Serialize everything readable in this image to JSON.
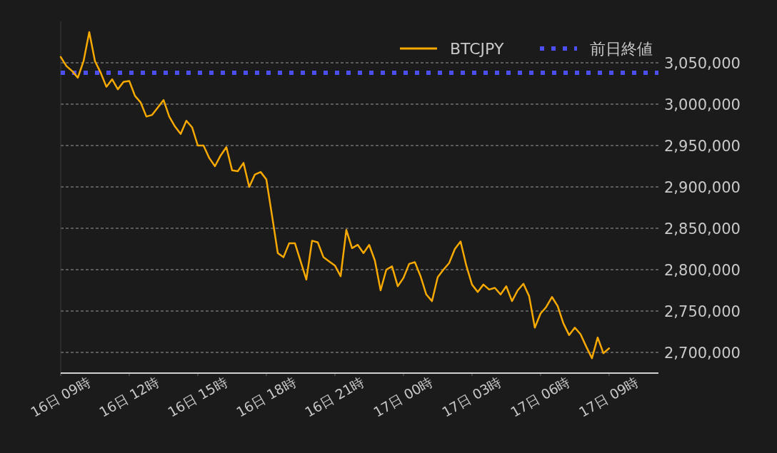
{
  "chart_data": {
    "type": "line",
    "categories": [
      "16日 09時",
      null,
      null,
      null,
      null,
      null,
      null,
      null,
      null,
      null,
      null,
      null,
      "16日 12時",
      null,
      null,
      null,
      null,
      null,
      null,
      null,
      null,
      null,
      null,
      null,
      "16日 15時",
      null,
      null,
      null,
      null,
      null,
      null,
      null,
      null,
      null,
      null,
      null,
      "16日 18時",
      null,
      null,
      null,
      null,
      null,
      null,
      null,
      null,
      null,
      null,
      null,
      "16日 21時",
      null,
      null,
      null,
      null,
      null,
      null,
      null,
      null,
      null,
      null,
      null,
      "17日 00時",
      null,
      null,
      null,
      null,
      null,
      null,
      null,
      null,
      null,
      null,
      null,
      "17日 03時",
      null,
      null,
      null,
      null,
      null,
      null,
      null,
      null,
      null,
      null,
      null,
      "17日 06時",
      null,
      null,
      null,
      null,
      null,
      null,
      null,
      null,
      null,
      null,
      null,
      "17日 09時"
    ],
    "series": [
      {
        "name": "BTCJPY",
        "color": "#f7a900",
        "values": [
          3057000,
          3046000,
          3040000,
          3032000,
          3052000,
          3087000,
          3052000,
          3038000,
          3021000,
          3030000,
          3018000,
          3027000,
          3028000,
          3010000,
          3002000,
          2985000,
          2987000,
          2996000,
          3005000,
          2985000,
          2973000,
          2964000,
          2980000,
          2972000,
          2950000,
          2950000,
          2935000,
          2925000,
          2938000,
          2948000,
          2920000,
          2919000,
          2929000,
          2900000,
          2915000,
          2918000,
          2909000,
          2865000,
          2820000,
          2815000,
          2832000,
          2832000,
          2810000,
          2788000,
          2835000,
          2833000,
          2815000,
          2810000,
          2805000,
          2792000,
          2848000,
          2826000,
          2830000,
          2820000,
          2830000,
          2811000,
          2775000,
          2800000,
          2804000,
          2780000,
          2790000,
          2807000,
          2809000,
          2792000,
          2770000,
          2762000,
          2791000,
          2800000,
          2808000,
          2825000,
          2834000,
          2805000,
          2782000,
          2773000,
          2782000,
          2776000,
          2778000,
          2770000,
          2780000,
          2762000,
          2775000,
          2783000,
          2768000,
          2730000,
          2747000,
          2755000,
          2767000,
          2756000,
          2735000,
          2721000,
          2730000,
          2722000,
          2707000,
          2693000,
          2718000,
          2699000,
          2705000
        ]
      }
    ],
    "ref_lines": [
      {
        "axis": "y",
        "value": 3038000,
        "label": "前日終値",
        "color": "#4d4ff2",
        "line_style": "dotted"
      }
    ],
    "yticks": [
      {
        "value": 2700000,
        "label": "2,700,000"
      },
      {
        "value": 2750000,
        "label": "2,750,000"
      },
      {
        "value": 2800000,
        "label": "2,800,000"
      },
      {
        "value": 2850000,
        "label": "2,850,000"
      },
      {
        "value": 2900000,
        "label": "2,900,000"
      },
      {
        "value": 2950000,
        "label": "2,950,000"
      },
      {
        "value": 3000000,
        "label": "3,000,000"
      },
      {
        "value": 3050000,
        "label": "3,050,000"
      }
    ],
    "ylim": [
      2675000,
      3100000
    ],
    "grid": "y",
    "legend": "top right"
  }
}
